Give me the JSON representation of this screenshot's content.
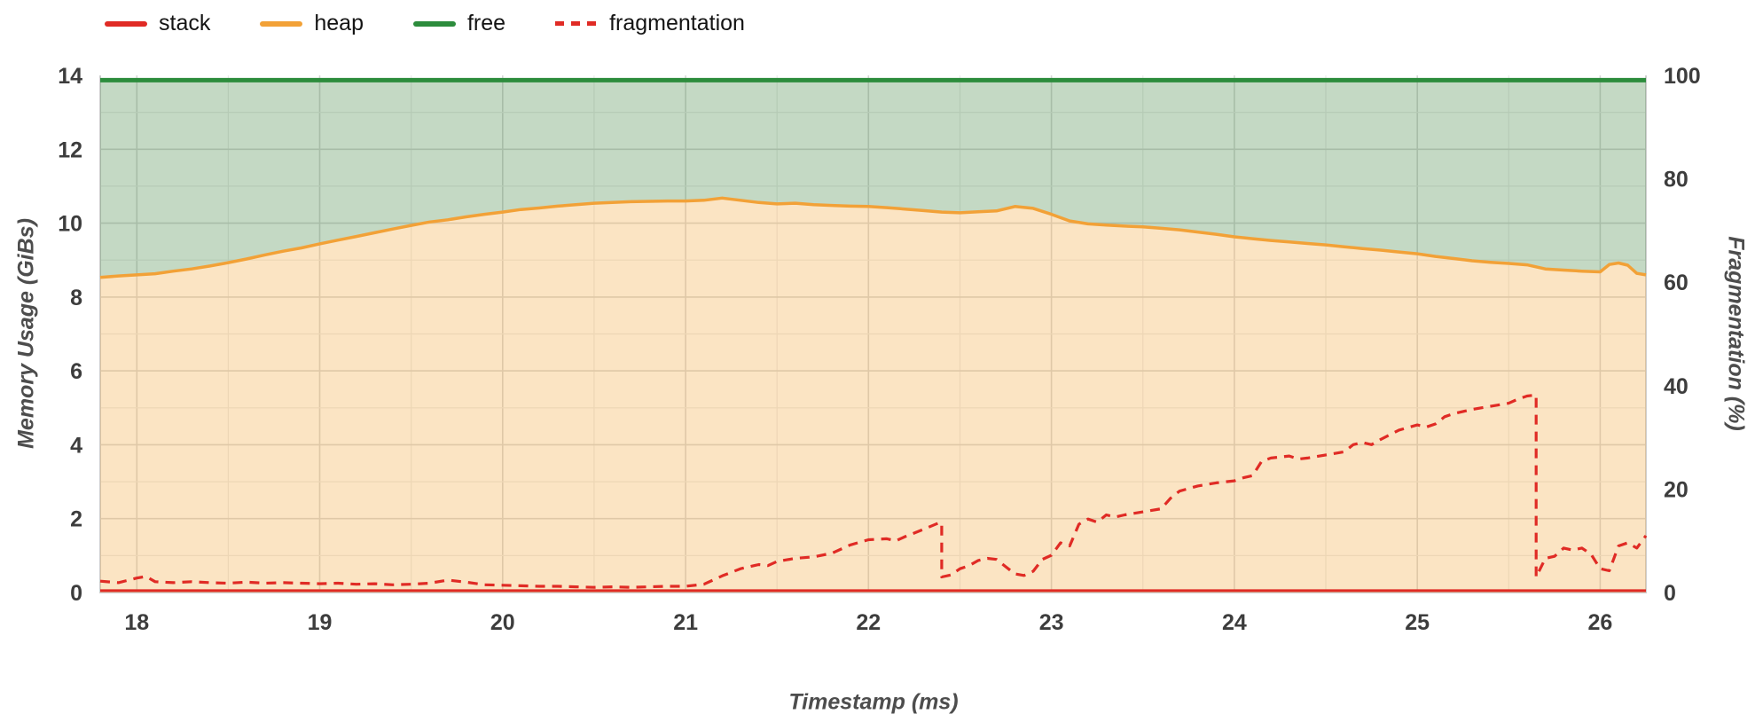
{
  "page": {
    "background": "#ffffff"
  },
  "chart_data": {
    "type": "area",
    "title": "",
    "xlabel": "Timestamp (ms)",
    "ylabel_left": "Memory Usage (GiBs)",
    "ylabel_right": "Fragmentation (%)",
    "xlim": [
      17.8,
      26.25
    ],
    "ylim_left": [
      0,
      14
    ],
    "ylim_right": [
      0,
      100
    ],
    "x_ticks": [
      18,
      19,
      20,
      21,
      22,
      23,
      24,
      25,
      26
    ],
    "y_ticks_left": [
      0,
      2,
      4,
      6,
      8,
      10,
      12,
      14
    ],
    "y_ticks_right": [
      0,
      20,
      40,
      60,
      80,
      100
    ],
    "grid": "on",
    "legend_position": "top-left",
    "series": [
      {
        "name": "stack",
        "kind": "area",
        "axis": "left",
        "color": "#e02b25",
        "fill": "rgba(224,43,37,0.35)",
        "constant": 0.05
      },
      {
        "name": "heap",
        "kind": "area",
        "axis": "left",
        "color": "#f2a137",
        "fill": "rgba(243,164,56,0.30)",
        "points": [
          [
            17.8,
            8.53
          ],
          [
            17.9,
            8.57
          ],
          [
            18.0,
            8.6
          ],
          [
            18.1,
            8.63
          ],
          [
            18.2,
            8.7
          ],
          [
            18.3,
            8.76
          ],
          [
            18.4,
            8.84
          ],
          [
            18.5,
            8.93
          ],
          [
            18.6,
            9.03
          ],
          [
            18.7,
            9.14
          ],
          [
            18.8,
            9.24
          ],
          [
            18.9,
            9.33
          ],
          [
            19.0,
            9.44
          ],
          [
            19.1,
            9.54
          ],
          [
            19.2,
            9.64
          ],
          [
            19.3,
            9.74
          ],
          [
            19.4,
            9.84
          ],
          [
            19.5,
            9.94
          ],
          [
            19.6,
            10.03
          ],
          [
            19.7,
            10.09
          ],
          [
            19.8,
            10.17
          ],
          [
            19.9,
            10.24
          ],
          [
            20.0,
            10.3
          ],
          [
            20.1,
            10.37
          ],
          [
            20.2,
            10.41
          ],
          [
            20.3,
            10.46
          ],
          [
            20.4,
            10.5
          ],
          [
            20.5,
            10.54
          ],
          [
            20.6,
            10.56
          ],
          [
            20.7,
            10.58
          ],
          [
            20.8,
            10.59
          ],
          [
            20.9,
            10.6
          ],
          [
            21.0,
            10.6
          ],
          [
            21.1,
            10.62
          ],
          [
            21.2,
            10.68
          ],
          [
            21.3,
            10.62
          ],
          [
            21.4,
            10.56
          ],
          [
            21.5,
            10.52
          ],
          [
            21.6,
            10.54
          ],
          [
            21.7,
            10.5
          ],
          [
            21.8,
            10.48
          ],
          [
            21.9,
            10.46
          ],
          [
            22.0,
            10.45
          ],
          [
            22.1,
            10.42
          ],
          [
            22.2,
            10.38
          ],
          [
            22.3,
            10.34
          ],
          [
            22.4,
            10.3
          ],
          [
            22.5,
            10.28
          ],
          [
            22.6,
            10.31
          ],
          [
            22.7,
            10.33
          ],
          [
            22.8,
            10.45
          ],
          [
            22.9,
            10.4
          ],
          [
            23.0,
            10.24
          ],
          [
            23.1,
            10.06
          ],
          [
            23.2,
            9.98
          ],
          [
            23.3,
            9.95
          ],
          [
            23.4,
            9.92
          ],
          [
            23.5,
            9.9
          ],
          [
            23.6,
            9.86
          ],
          [
            23.7,
            9.82
          ],
          [
            23.8,
            9.76
          ],
          [
            23.9,
            9.7
          ],
          [
            24.0,
            9.63
          ],
          [
            24.1,
            9.58
          ],
          [
            24.2,
            9.53
          ],
          [
            24.3,
            9.49
          ],
          [
            24.4,
            9.45
          ],
          [
            24.5,
            9.41
          ],
          [
            24.6,
            9.36
          ],
          [
            24.7,
            9.31
          ],
          [
            24.8,
            9.27
          ],
          [
            24.9,
            9.22
          ],
          [
            25.0,
            9.17
          ],
          [
            25.1,
            9.1
          ],
          [
            25.2,
            9.04
          ],
          [
            25.3,
            8.98
          ],
          [
            25.4,
            8.94
          ],
          [
            25.5,
            8.91
          ],
          [
            25.6,
            8.87
          ],
          [
            25.7,
            8.76
          ],
          [
            25.8,
            8.73
          ],
          [
            25.9,
            8.7
          ],
          [
            26.0,
            8.68
          ],
          [
            26.05,
            8.88
          ],
          [
            26.1,
            8.92
          ],
          [
            26.15,
            8.86
          ],
          [
            26.2,
            8.64
          ],
          [
            26.25,
            8.6
          ]
        ]
      },
      {
        "name": "free",
        "kind": "area",
        "axis": "left",
        "color": "#2c8c3c",
        "fill": "rgba(58,130,58,0.30)",
        "constant": 13.87
      },
      {
        "name": "fragmentation",
        "kind": "line",
        "style": "dashed",
        "axis": "right",
        "color": "#e02b25",
        "points": [
          [
            17.8,
            2.2
          ],
          [
            17.9,
            1.9
          ],
          [
            18.0,
            2.8
          ],
          [
            18.05,
            3.1
          ],
          [
            18.1,
            2.1
          ],
          [
            18.2,
            1.9
          ],
          [
            18.3,
            2.1
          ],
          [
            18.4,
            1.9
          ],
          [
            18.5,
            1.8
          ],
          [
            18.6,
            2.0
          ],
          [
            18.7,
            1.8
          ],
          [
            18.8,
            1.9
          ],
          [
            18.9,
            1.8
          ],
          [
            19.0,
            1.7
          ],
          [
            19.1,
            1.8
          ],
          [
            19.2,
            1.6
          ],
          [
            19.3,
            1.7
          ],
          [
            19.4,
            1.5
          ],
          [
            19.5,
            1.6
          ],
          [
            19.6,
            1.8
          ],
          [
            19.7,
            2.4
          ],
          [
            19.8,
            2.0
          ],
          [
            19.9,
            1.5
          ],
          [
            20.0,
            1.4
          ],
          [
            20.1,
            1.3
          ],
          [
            20.2,
            1.2
          ],
          [
            20.3,
            1.2
          ],
          [
            20.4,
            1.1
          ],
          [
            20.5,
            1.0
          ],
          [
            20.6,
            1.1
          ],
          [
            20.7,
            1.0
          ],
          [
            20.8,
            1.1
          ],
          [
            20.9,
            1.2
          ],
          [
            21.0,
            1.2
          ],
          [
            21.1,
            1.6
          ],
          [
            21.2,
            3.2
          ],
          [
            21.3,
            4.6
          ],
          [
            21.35,
            5.0
          ],
          [
            21.4,
            5.4
          ],
          [
            21.45,
            5.2
          ],
          [
            21.5,
            6.0
          ],
          [
            21.6,
            6.6
          ],
          [
            21.7,
            6.9
          ],
          [
            21.8,
            7.6
          ],
          [
            21.9,
            9.2
          ],
          [
            22.0,
            10.2
          ],
          [
            22.1,
            10.4
          ],
          [
            22.15,
            10.0
          ],
          [
            22.2,
            10.8
          ],
          [
            22.3,
            12.2
          ],
          [
            22.38,
            13.4
          ],
          [
            22.4,
            13.5
          ],
          [
            22.4,
            3.0
          ],
          [
            22.45,
            3.4
          ],
          [
            22.5,
            4.6
          ],
          [
            22.55,
            5.2
          ],
          [
            22.6,
            6.2
          ],
          [
            22.65,
            6.6
          ],
          [
            22.7,
            6.4
          ],
          [
            22.75,
            5.0
          ],
          [
            22.8,
            3.6
          ],
          [
            22.85,
            3.3
          ],
          [
            22.9,
            4.1
          ],
          [
            22.95,
            6.4
          ],
          [
            23.0,
            7.2
          ],
          [
            23.05,
            9.6
          ],
          [
            23.1,
            9.0
          ],
          [
            23.15,
            13.2
          ],
          [
            23.2,
            14.2
          ],
          [
            23.25,
            13.6
          ],
          [
            23.3,
            15.0
          ],
          [
            23.35,
            14.6
          ],
          [
            23.4,
            15.0
          ],
          [
            23.5,
            15.6
          ],
          [
            23.6,
            16.2
          ],
          [
            23.65,
            18.2
          ],
          [
            23.7,
            19.6
          ],
          [
            23.8,
            20.6
          ],
          [
            23.9,
            21.2
          ],
          [
            24.0,
            21.6
          ],
          [
            24.05,
            22.2
          ],
          [
            24.1,
            22.6
          ],
          [
            24.15,
            25.4
          ],
          [
            24.2,
            26.0
          ],
          [
            24.3,
            26.4
          ],
          [
            24.35,
            25.8
          ],
          [
            24.4,
            26.0
          ],
          [
            24.5,
            26.6
          ],
          [
            24.6,
            27.2
          ],
          [
            24.65,
            28.6
          ],
          [
            24.7,
            29.0
          ],
          [
            24.75,
            28.6
          ],
          [
            24.8,
            29.6
          ],
          [
            24.9,
            31.4
          ],
          [
            25.0,
            32.4
          ],
          [
            25.05,
            32.0
          ],
          [
            25.1,
            32.6
          ],
          [
            25.15,
            34.0
          ],
          [
            25.2,
            34.6
          ],
          [
            25.3,
            35.4
          ],
          [
            25.4,
            36.0
          ],
          [
            25.5,
            36.6
          ],
          [
            25.55,
            37.4
          ],
          [
            25.6,
            38.0
          ],
          [
            25.65,
            38.2
          ],
          [
            25.65,
            3.0
          ],
          [
            25.7,
            6.6
          ],
          [
            25.75,
            7.0
          ],
          [
            25.8,
            8.6
          ],
          [
            25.85,
            8.2
          ],
          [
            25.9,
            8.6
          ],
          [
            25.95,
            7.4
          ],
          [
            26.0,
            4.6
          ],
          [
            26.05,
            4.2
          ],
          [
            26.1,
            9.0
          ],
          [
            26.15,
            9.6
          ],
          [
            26.2,
            8.6
          ],
          [
            26.25,
            11.0
          ]
        ]
      }
    ]
  }
}
